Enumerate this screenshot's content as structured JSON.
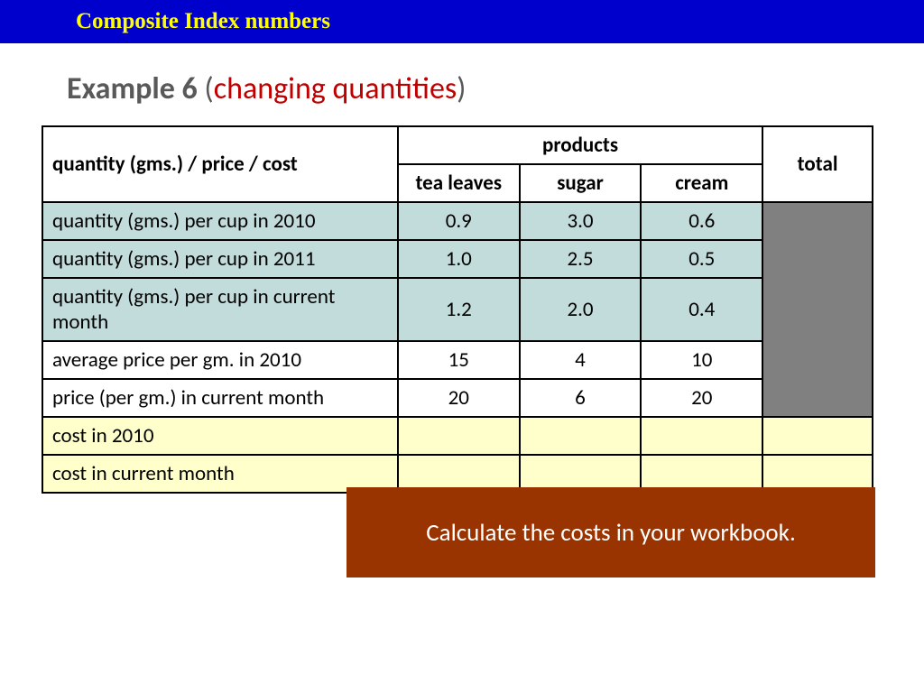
{
  "header": {
    "title": "Composite Index numbers"
  },
  "title": {
    "bold": "Example 6",
    "open": " (",
    "sub": "changing quantities",
    "close": ")"
  },
  "table": {
    "corner": "quantity (gms.) / price / cost",
    "products_label": "products",
    "total_label": "total",
    "products": [
      "tea leaves",
      "sugar",
      "cream"
    ],
    "rows": [
      {
        "label": "quantity (gms.) per cup  in 2010",
        "vals": [
          "0.9",
          "3.0",
          "0.6"
        ],
        "bg": "blue"
      },
      {
        "label": "quantity (gms.) per cup  in 2011",
        "vals": [
          "1.0",
          "2.5",
          "0.5"
        ],
        "bg": "blue"
      },
      {
        "label": "quantity (gms.) per cup  in current month",
        "vals": [
          "1.2",
          "2.0",
          "0.4"
        ],
        "bg": "blue"
      },
      {
        "label": "average price per gm. in 2010",
        "vals": [
          "15",
          "4",
          "10"
        ],
        "bg": "white"
      },
      {
        "label": "price (per gm.) in current month",
        "vals": [
          "20",
          "6",
          "20"
        ],
        "bg": "white"
      },
      {
        "label": "cost in 2010",
        "vals": [
          "",
          "",
          ""
        ],
        "bg": "yellow"
      },
      {
        "label": "cost in current month",
        "vals": [
          "",
          "",
          ""
        ],
        "bg": "yellow"
      }
    ]
  },
  "overlay": {
    "text": "Calculate the costs in your workbook."
  },
  "colors": {
    "header_bg": "#0000cd",
    "header_text": "#ffff00",
    "title_grey": "#595959",
    "title_red": "#c00000",
    "row_blue": "#c2dbdb",
    "row_yellow": "#ffffcc",
    "grey_cell": "#808080",
    "overlay_bg": "#993300",
    "overlay_text": "#ffffff",
    "border": "#000000"
  }
}
